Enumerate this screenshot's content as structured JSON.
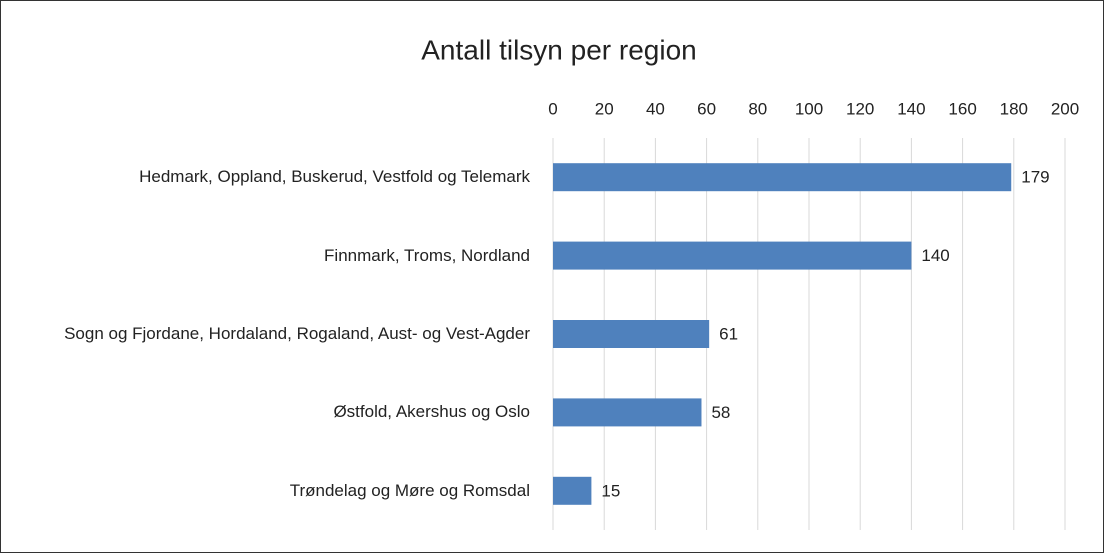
{
  "chart_data": {
    "type": "bar",
    "orientation": "horizontal",
    "title": "Antall tilsyn per region",
    "categories": [
      "Hedmark, Oppland, Buskerud, Vestfold og Telemark",
      "Finnmark, Troms, Nordland",
      "Sogn og Fjordane, Hordaland, Rogaland, Aust- og Vest-Agder",
      "Østfold, Akershus og Oslo",
      "Trøndelag og Møre og Romsdal"
    ],
    "values": [
      179,
      140,
      61,
      58,
      15
    ],
    "color": "#4f81bd",
    "xlim": [
      0,
      200
    ],
    "xticks": [
      0,
      20,
      40,
      60,
      80,
      100,
      120,
      140,
      160,
      180,
      200
    ],
    "grid": true,
    "tick_position": "top"
  }
}
